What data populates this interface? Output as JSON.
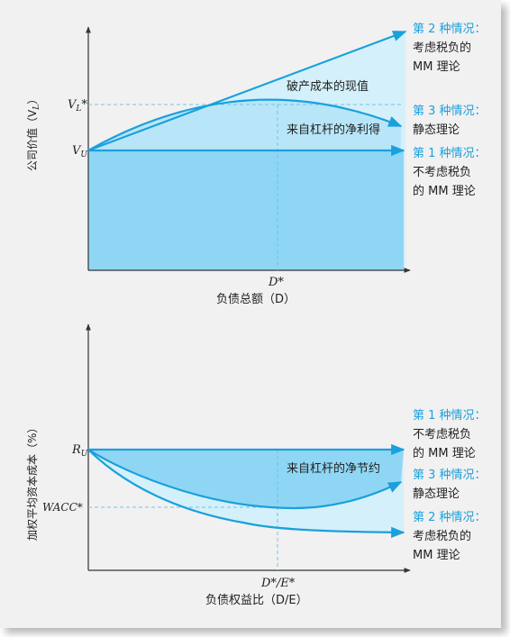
{
  "top": {
    "y_axis_label": "公司价值（V",
    "y_axis_sub": "L",
    "y_axis_close": "）",
    "tick_vl": "V",
    "tick_vl_sub": "L",
    "tick_vl_star": "*",
    "tick_vu": "V",
    "tick_vu_sub": "U",
    "x_tick": "D*",
    "x_axis_label": "负债总额（D）",
    "region_upper": "破产成本的现值",
    "region_lower": "来自杠杆的净利得",
    "case2_title": "第 2 种情况：",
    "case2_line1": "考虑税负的",
    "case2_line2": "MM 理论",
    "case3_title": "第 3 种情况：",
    "case3_line1": "静态理论",
    "case1_title": "第 1 种情况：",
    "case1_line1": "不考虑税负",
    "case1_line2": "的 MM 理论"
  },
  "bottom": {
    "y_axis_label": "加权平均资本成本（%）",
    "tick_ru": "R",
    "tick_ru_sub": "U",
    "tick_wacc": "WACC*",
    "x_tick": "D*/E*",
    "x_axis_label": "负债权益比（D/E）",
    "region": "来自杠杆的净节约",
    "case1_title": "第 1 种情况：",
    "case1_line1": "不考虑税负",
    "case1_line2": "的 MM 理论",
    "case3_title": "第 3 种情况：",
    "case3_line1": "静态理论",
    "case2_title": "第 2 种情况：",
    "case2_line1": "考虑税负的",
    "case2_line2": "MM 理论"
  },
  "colors": {
    "line": "#1aa0dc",
    "fill_dark": "#8fd6f4",
    "fill_mid": "#b8e6f8",
    "fill_light": "#d4f0fb",
    "label_blue": "#1aa0dc"
  }
}
